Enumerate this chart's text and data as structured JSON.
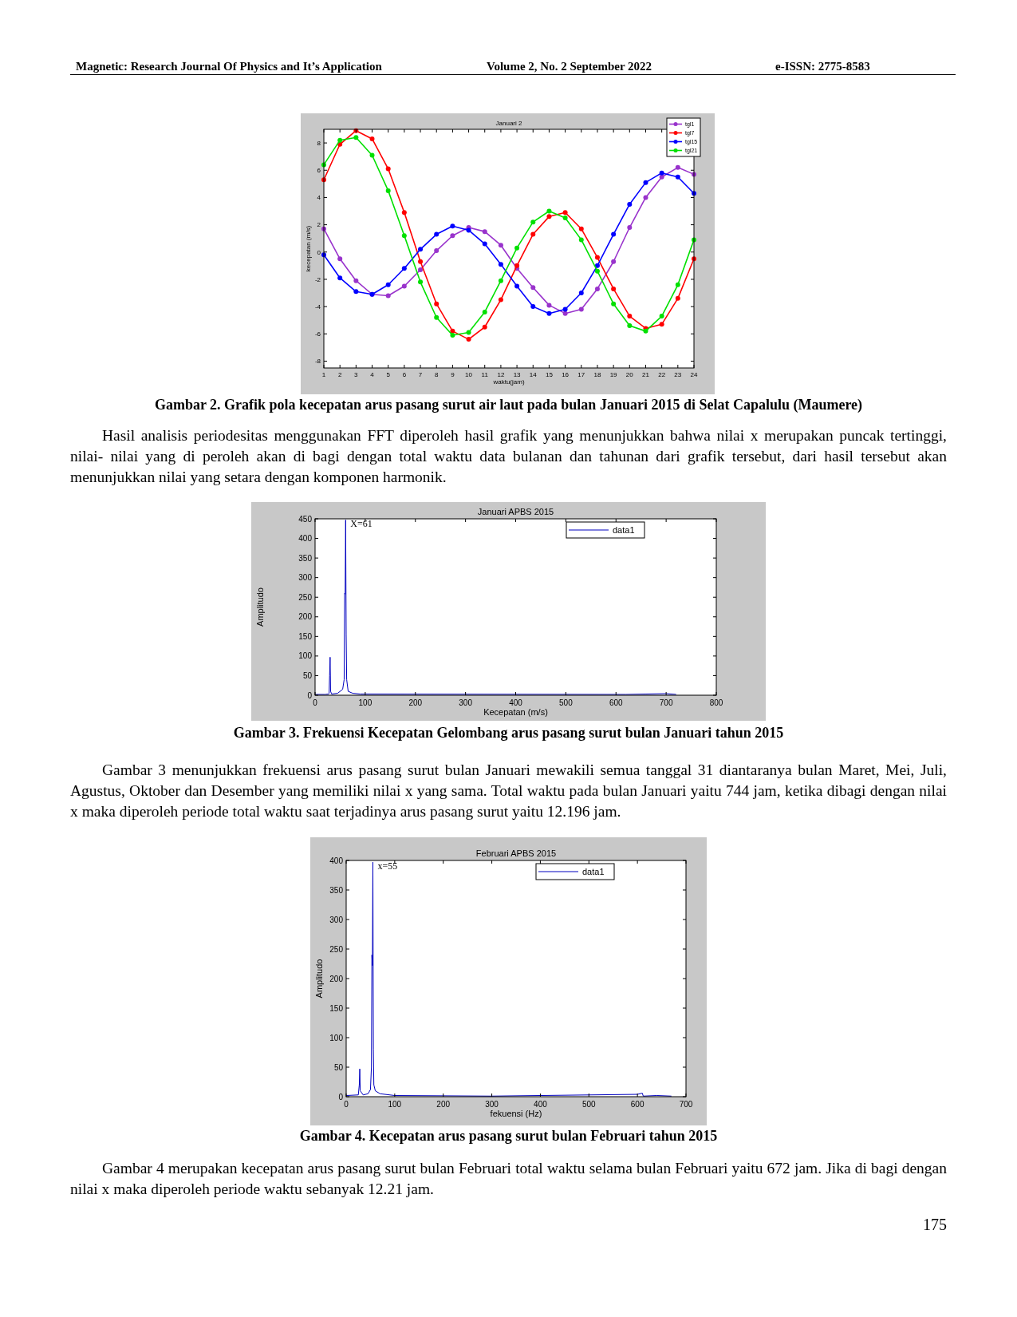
{
  "chart_data": [
    {
      "type": "line",
      "title": "Januari 2",
      "xlabel": "waktu(jam)",
      "ylabel": "kecepatan (m/s)",
      "x": [
        1,
        2,
        3,
        4,
        5,
        6,
        7,
        8,
        9,
        10,
        11,
        12,
        13,
        14,
        15,
        16,
        17,
        18,
        19,
        20,
        21,
        22,
        23,
        24
      ],
      "xlim": [
        1,
        24
      ],
      "xticks": [
        1,
        2,
        3,
        4,
        5,
        6,
        7,
        8,
        9,
        10,
        11,
        12,
        13,
        14,
        15,
        16,
        17,
        18,
        19,
        20,
        21,
        22,
        23,
        24
      ],
      "ylim": [
        -8.5,
        9
      ],
      "yticks": [
        -8,
        -6,
        -4,
        -2,
        0,
        2,
        4,
        6,
        8
      ],
      "marker": "circle",
      "legend": "top right",
      "series": [
        {
          "name": "tgl1",
          "color": "#9933cc",
          "values": [
            1.7,
            -0.5,
            -2.1,
            -3.1,
            -3.2,
            -2.5,
            -1.3,
            0.1,
            1.2,
            1.8,
            1.5,
            0.5,
            -1.2,
            -2.6,
            -3.9,
            -4.5,
            -4.2,
            -2.7,
            -0.7,
            1.8,
            4.0,
            5.5,
            6.2,
            5.7
          ]
        },
        {
          "name": "tgl7",
          "color": "#ff0000",
          "values": [
            5.3,
            7.9,
            8.9,
            8.3,
            6.1,
            2.9,
            -0.7,
            -3.8,
            -5.8,
            -6.4,
            -5.5,
            -3.5,
            -1.0,
            1.3,
            2.6,
            2.9,
            1.7,
            -0.4,
            -2.7,
            -4.7,
            -5.6,
            -5.3,
            -3.4,
            -0.5
          ]
        },
        {
          "name": "tgl15",
          "color": "#0000ff",
          "values": [
            -0.2,
            -1.9,
            -2.9,
            -3.1,
            -2.4,
            -1.2,
            0.2,
            1.3,
            1.9,
            1.6,
            0.6,
            -0.9,
            -2.5,
            -4.0,
            -4.5,
            -4.2,
            -3.0,
            -1.0,
            1.3,
            3.5,
            5.1,
            5.8,
            5.5,
            4.3
          ]
        },
        {
          "name": "tgl21",
          "color": "#00e000",
          "values": [
            6.4,
            8.2,
            8.4,
            7.1,
            4.5,
            1.2,
            -2.2,
            -4.8,
            -6.1,
            -5.9,
            -4.4,
            -2.1,
            0.3,
            2.2,
            3.0,
            2.5,
            0.9,
            -1.4,
            -3.8,
            -5.4,
            -5.8,
            -4.7,
            -2.4,
            0.9
          ]
        }
      ],
      "annotations": [
        "Magnetic: Research Journal Of Physics and It’s Application",
        "Volume 2, No. 2 September 2022",
        "e-ISSN: 2775-8583",
        "Gambar 2. Grafik pola kecepatan arus pasang surut air laut pada bulan Januari 2015 di Selat Capalulu (Maumere)",
        "Hasil analisis periodesitas menggunakan FFT diperoleh hasil grafik yang menunjukkan bahwa nilai x merupakan puncak tertinggi, nilai- nilai yang di peroleh akan di bagi dengan total waktu data bulanan dan tahunan dari grafik tersebut, dari hasil tersebut akan menunjukkan nilai yang setara dengan komponen harmonik."
      ]
    },
    {
      "type": "line",
      "title": "Januari APBS 2015",
      "xlabel": "Kecepatan (m/s)",
      "ylabel": "Amplitudo",
      "xlim": [
        0,
        800
      ],
      "xticks": [
        0,
        100,
        200,
        300,
        400,
        500,
        600,
        700,
        800
      ],
      "ylim": [
        0,
        450
      ],
      "yticks": [
        0,
        50,
        100,
        150,
        200,
        250,
        300,
        350,
        400,
        450
      ],
      "legend": "top right",
      "series": [
        {
          "name": "data1",
          "color": "#0000c0",
          "x": [
            0,
            20,
            27,
            28,
            29,
            30,
            31,
            33,
            45,
            55,
            58,
            59,
            60,
            61,
            62,
            63,
            66,
            75,
            90,
            100,
            620,
            660,
            700,
            720
          ],
          "values": [
            2,
            2,
            3,
            5,
            50,
            97,
            10,
            3,
            5,
            15,
            40,
            260,
            258,
            447,
            155,
            40,
            10,
            5,
            3,
            3,
            2,
            3,
            4,
            2
          ]
        }
      ],
      "annotations": [
        {
          "text": "X=61",
          "x": 61,
          "y": 447
        },
        "Gambar 3. Frekuensi Kecepatan Gelombang arus pasang surut bulan Januari tahun 2015",
        "Gambar 3 menunjukkan frekuensi arus pasang surut bulan Januari mewakili semua tanggal 31 diantaranya bulan Maret, Mei, Juli, Agustus, Oktober dan Desember yang memiliki nilai x yang sama. Total waktu pada bulan Januari yaitu 744 jam, ketika dibagi dengan nilai x maka diperoleh periode total waktu saat terjadinya arus pasang surut yaitu 12.196 jam."
      ]
    },
    {
      "type": "line",
      "title": "Februari APBS 2015",
      "xlabel": "fekuensi (Hz)",
      "ylabel": "Amplitudo",
      "xlim": [
        0,
        700
      ],
      "xticks": [
        0,
        100,
        200,
        300,
        400,
        500,
        600,
        700
      ],
      "ylim": [
        0,
        400
      ],
      "yticks": [
        0,
        50,
        100,
        150,
        200,
        250,
        300,
        350,
        400
      ],
      "legend": "top right",
      "series": [
        {
          "name": "data1",
          "color": "#0000c0",
          "x": [
            0,
            25,
            27,
            28,
            29,
            35,
            45,
            50,
            52,
            53,
            54,
            55,
            56,
            57,
            60,
            70,
            100,
            300,
            600,
            610,
            612,
            640,
            670
          ],
          "values": [
            2,
            3,
            20,
            47,
            10,
            3,
            5,
            12,
            50,
            240,
            222,
            397,
            80,
            20,
            10,
            5,
            2,
            1,
            4,
            6,
            1,
            2,
            1
          ]
        }
      ],
      "annotations": [
        {
          "text": "x=55",
          "x": 55,
          "y": 397
        },
        "Gambar 4. Kecepatan arus pasang surut bulan Februari tahun 2015",
        "Gambar 4 merupakan kecepatan arus pasang surut bulan Februari total waktu selama bulan Februari yaitu 672 jam. Jika di bagi dengan nilai x maka diperoleh periode waktu sebanyak 12.21 jam.",
        "175"
      ]
    }
  ]
}
